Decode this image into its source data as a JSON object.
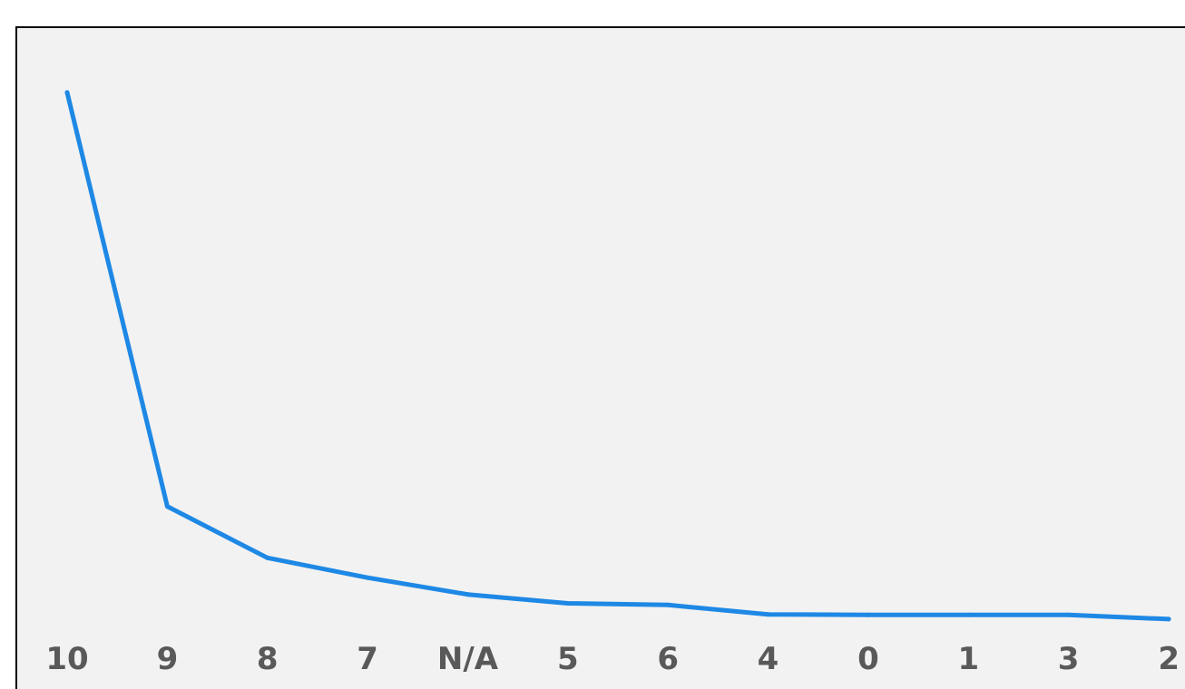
{
  "chart_data": {
    "type": "line",
    "title": "",
    "xlabel": "",
    "ylabel": "",
    "categories": [
      "10",
      "9",
      "8",
      "7",
      "N/A",
      "5",
      "6",
      "4",
      "0",
      "1",
      "3",
      "2"
    ],
    "series": [
      {
        "values": [
          100,
          21,
          11.2,
          7.4,
          4.2,
          2.5,
          2.2,
          0.4,
          0.3,
          0.3,
          0.3,
          -0.5
        ]
      }
    ],
    "ylim": [
      0,
      100
    ],
    "grid": false,
    "legend": "none",
    "colors": {
      "line": "#1e88e5",
      "background": "#f2f2f2",
      "tick_text": "#595959",
      "frame": "#000000"
    }
  }
}
